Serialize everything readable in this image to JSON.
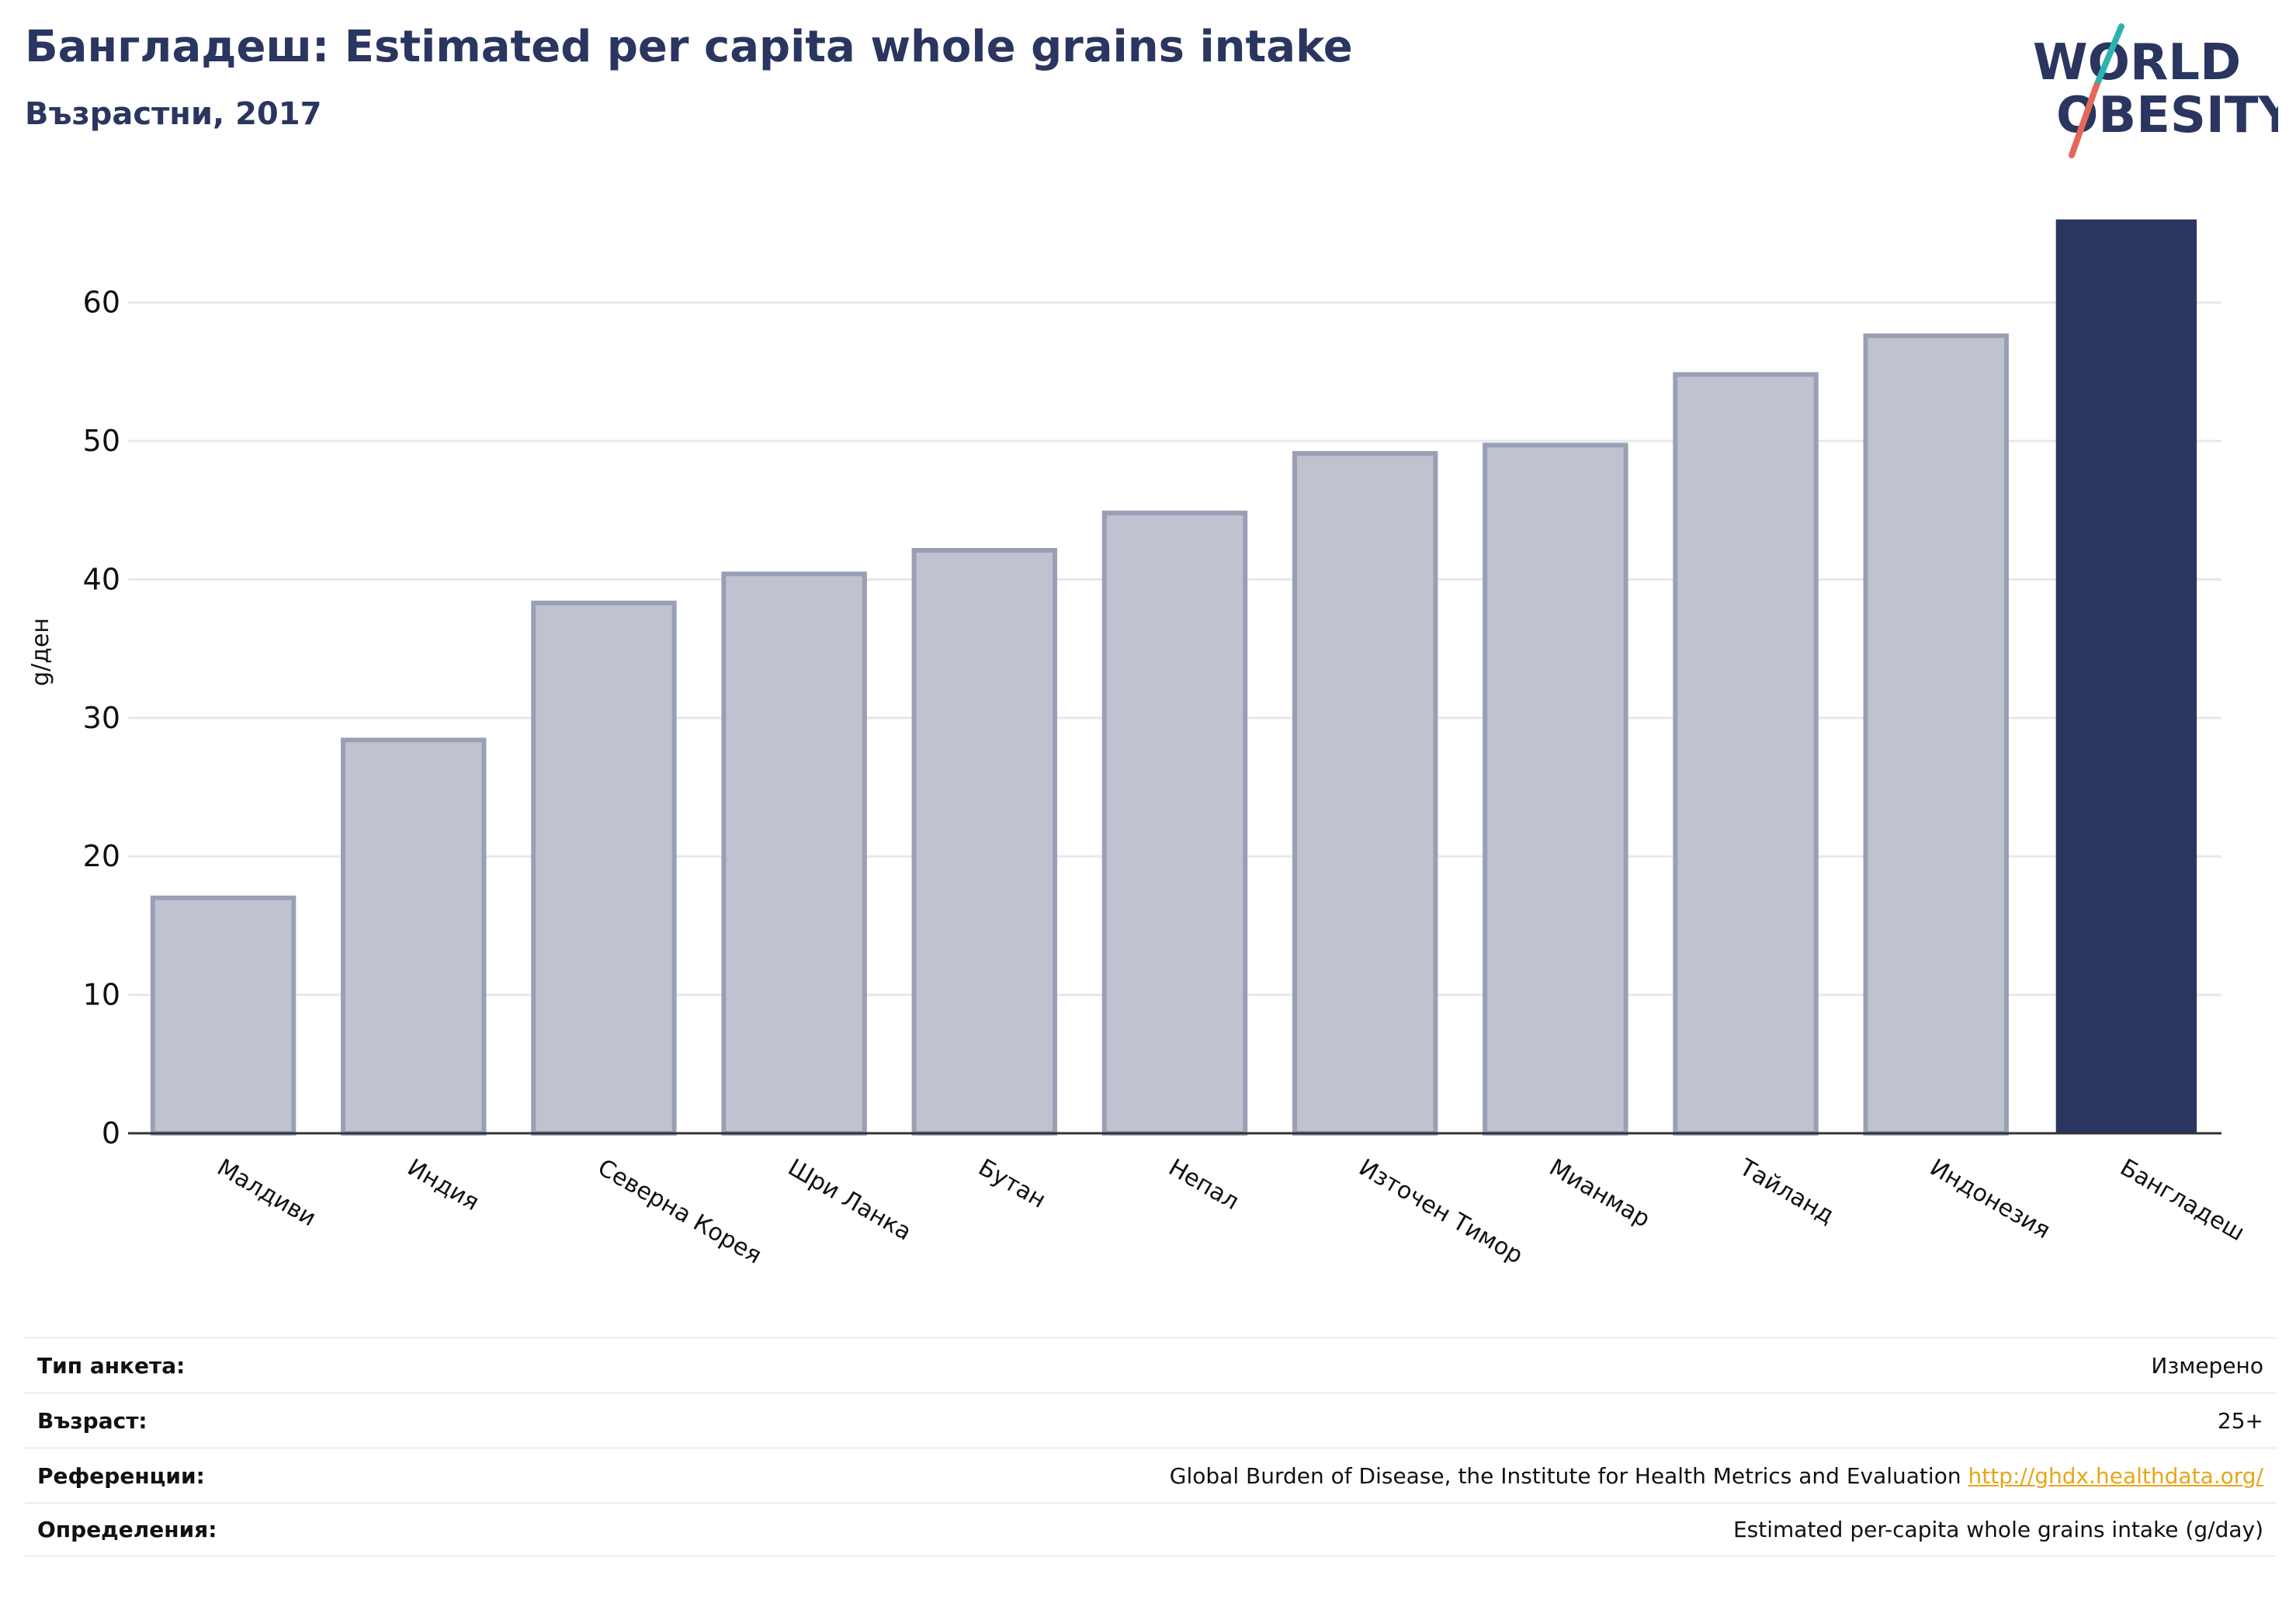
{
  "header": {
    "title": "Бангладеш: Estimated per capita whole grains intake",
    "subtitle": "Възрастни, 2017"
  },
  "logo": {
    "line1": "WORLD",
    "line2": "OBESITY",
    "colors": {
      "text": "#2a3560",
      "slash_top": "#2bb3b1",
      "slash_bottom": "#e5675a"
    }
  },
  "chart_data": {
    "type": "bar",
    "categories": [
      "Малдиви",
      "Индия",
      "Северна Корея",
      "Шри Ланка",
      "Бутан",
      "Непал",
      "Източен Тимор",
      "Мианмар",
      "Тайланд",
      "Индонезия",
      "Бангладеш"
    ],
    "values": [
      17.0,
      28.4,
      38.3,
      40.4,
      42.1,
      44.8,
      49.1,
      49.7,
      54.8,
      57.6,
      66.0
    ],
    "highlight": "Бангладеш",
    "ylabel": "g/ден",
    "xlabel": "",
    "ylim": [
      0,
      68
    ],
    "yticks": [
      0,
      10,
      20,
      30,
      40,
      50,
      60
    ],
    "grid": true,
    "colors": {
      "bar": "#bfc2cf",
      "bar_border": "#9a9fb6",
      "highlight": "#2a3560"
    }
  },
  "info": {
    "rows": [
      {
        "label": "Тип анкета:",
        "value": "Измерено",
        "link": ""
      },
      {
        "label": "Възраст:",
        "value": "25+",
        "link": ""
      },
      {
        "label": "Референции:",
        "value": "Global Burden of Disease, the Institute for Health Metrics and Evaluation",
        "link": "http://ghdx.healthdata.org/"
      },
      {
        "label": "Определения:",
        "value": "Estimated per-capita whole grains intake (g/day)",
        "link": ""
      }
    ]
  }
}
